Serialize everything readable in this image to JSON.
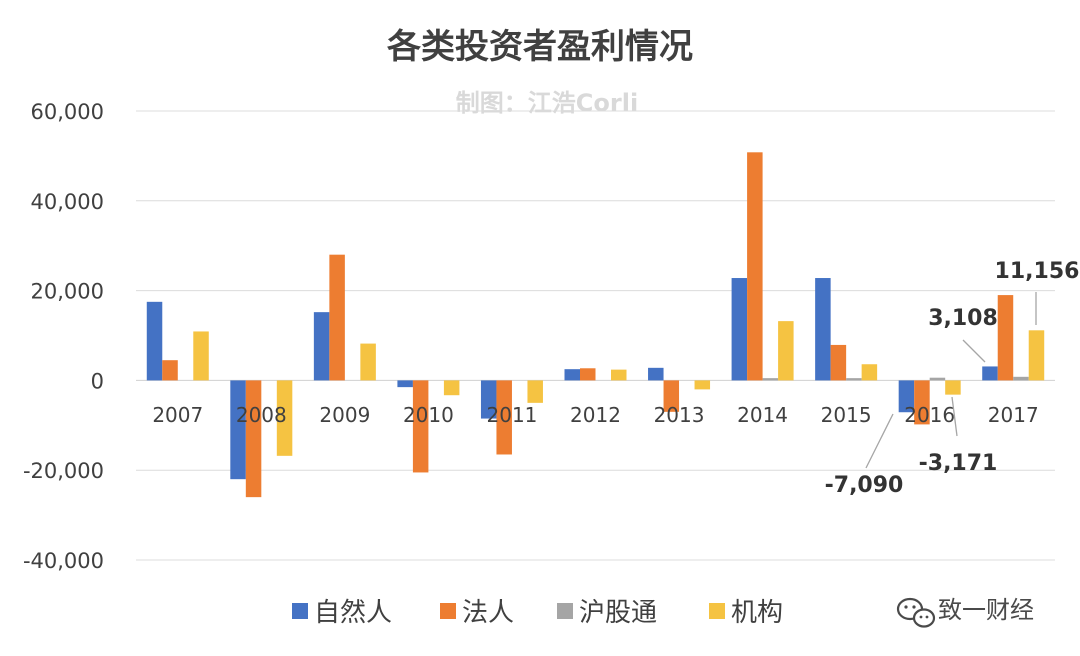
{
  "chart_data": {
    "type": "bar",
    "title": "各类投资者盈利情况",
    "subtitle": "制图：江浩Corli",
    "categories": [
      "2007",
      "2008",
      "2009",
      "2010",
      "2011",
      "2012",
      "2013",
      "2014",
      "2015",
      "2016",
      "2017"
    ],
    "series": [
      {
        "name": "自然人",
        "color": "#4472c4",
        "values": [
          17500,
          -22000,
          15200,
          -1500,
          -8500,
          2500,
          2800,
          22800,
          22800,
          -7090,
          3108
        ]
      },
      {
        "name": "法人",
        "color": "#ed7d31",
        "values": [
          4500,
          -26000,
          28000,
          -20500,
          -16500,
          2700,
          -7000,
          50800,
          7900,
          -9800,
          19000
        ]
      },
      {
        "name": "沪股通",
        "color": "#a5a5a5",
        "values": [
          0,
          0,
          0,
          0,
          0,
          0,
          0,
          500,
          500,
          600,
          800
        ]
      },
      {
        "name": "机构",
        "color": "#f5c342",
        "values": [
          10900,
          -16800,
          8200,
          -3300,
          -5000,
          2400,
          -2000,
          13200,
          3600,
          -3171,
          11156
        ]
      }
    ],
    "ylim": [
      -40000,
      60000
    ],
    "yticks": [
      -40000,
      -20000,
      0,
      20000,
      40000,
      60000
    ],
    "ytick_labels": [
      "-40,000",
      "-20,000",
      "0",
      "20,000",
      "40,000",
      "60,000"
    ],
    "grid": true,
    "legend_position": "bottom",
    "annotations": [
      {
        "text": "3,108",
        "category": "2017",
        "series": "自然人"
      },
      {
        "text": "11,156",
        "category": "2017",
        "series": "机构"
      },
      {
        "text": "-7,090",
        "category": "2016",
        "series": "自然人"
      },
      {
        "text": "-3,171",
        "category": "2016",
        "series": "机构"
      }
    ]
  },
  "watermark": {
    "text": "致一财经",
    "icon": "wechat-icon"
  }
}
